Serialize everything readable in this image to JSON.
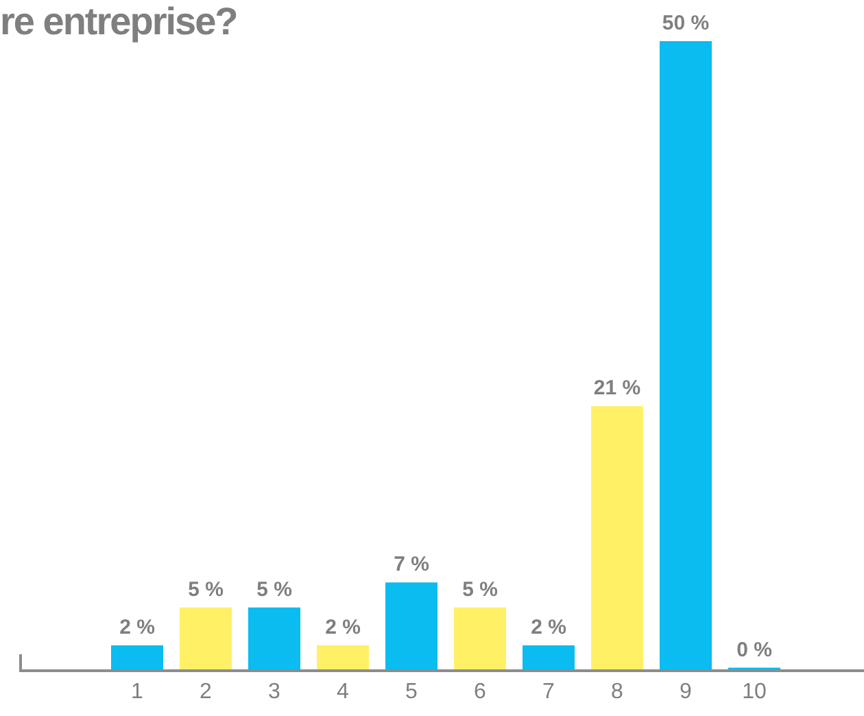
{
  "chart_data": {
    "type": "bar",
    "title": "re entreprise?",
    "categories": [
      "1",
      "2",
      "3",
      "4",
      "5",
      "6",
      "7",
      "8",
      "9",
      "10"
    ],
    "values": [
      2,
      5,
      5,
      2,
      7,
      5,
      2,
      21,
      50,
      0
    ],
    "colors": [
      "#0bbcf0",
      "#fff066",
      "#0bbcf0",
      "#fff066",
      "#0bbcf0",
      "#fff066",
      "#0bbcf0",
      "#fff066",
      "#0bbcf0",
      "#0bbcf0"
    ],
    "value_labels": [
      "2 %",
      "5 %",
      "5 %",
      "2 %",
      "7 %",
      "5 %",
      "2 %",
      "21 %",
      "50 %",
      "0 %"
    ],
    "grid": false,
    "legend": false
  }
}
